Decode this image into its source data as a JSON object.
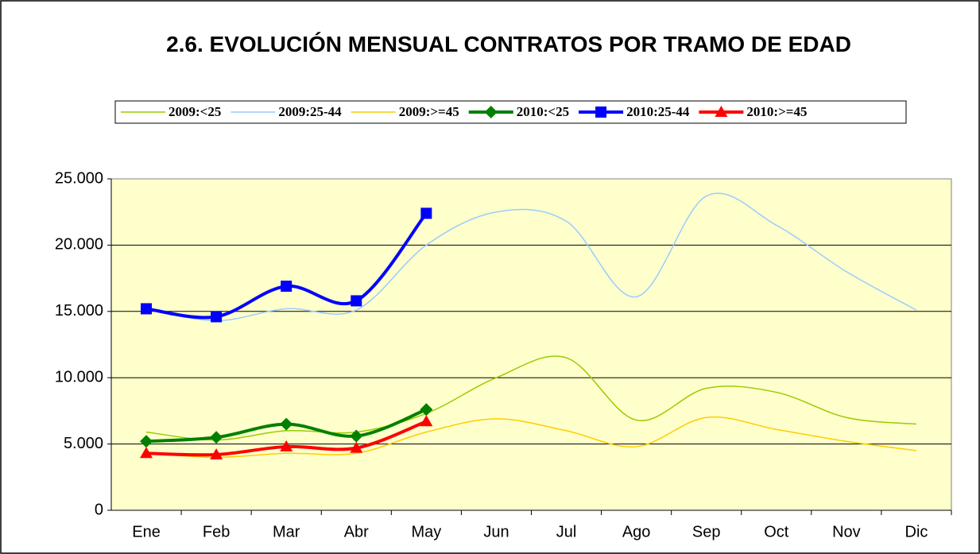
{
  "chart_data": {
    "type": "line",
    "title": "2.6. EVOLUCIÓN MENSUAL CONTRATOS POR TRAMO DE EDAD",
    "categories": [
      "Ene",
      "Feb",
      "Mar",
      "Abr",
      "May",
      "Jun",
      "Jul",
      "Ago",
      "Sep",
      "Oct",
      "Nov",
      "Dic"
    ],
    "series": [
      {
        "name": "2009:<25",
        "color": "#99cc00",
        "values": [
          5900,
          5300,
          6000,
          5900,
          7300,
          10000,
          11500,
          6800,
          9200,
          8900,
          7000,
          6500
        ]
      },
      {
        "name": "2009:25-44",
        "color": "#99ccff",
        "values": [
          15200,
          14300,
          15200,
          15100,
          20000,
          22500,
          21800,
          16100,
          23700,
          21500,
          18000,
          15100
        ]
      },
      {
        "name": "2009:>=45",
        "color": "#ffcc00",
        "values": [
          4300,
          4000,
          4300,
          4300,
          5900,
          6900,
          6000,
          4800,
          7000,
          6100,
          5200,
          4500
        ]
      },
      {
        "name": "2010:<25",
        "color": "#008000",
        "marker": "diamond",
        "values": [
          5200,
          5500,
          6500,
          5600,
          7600,
          null,
          null,
          null,
          null,
          null,
          null,
          null
        ]
      },
      {
        "name": "2010:25-44",
        "color": "#0000ff",
        "marker": "square",
        "values": [
          15200,
          14600,
          16900,
          15800,
          22400,
          null,
          null,
          null,
          null,
          null,
          null,
          null
        ]
      },
      {
        "name": "2010:>=45",
        "color": "#ff0000",
        "marker": "triangle",
        "values": [
          4300,
          4200,
          4800,
          4700,
          6700,
          null,
          null,
          null,
          null,
          null,
          null,
          null
        ]
      }
    ],
    "ylim": [
      0,
      25000
    ],
    "yticks": [
      0,
      {
        "value": 5000,
        "label": "5.000"
      },
      {
        "value": 10000,
        "label": "10.000"
      },
      {
        "value": 15000,
        "label": "15.000"
      },
      {
        "value": 20000,
        "label": "20.000"
      },
      {
        "value": 25000,
        "label": "25.000"
      }
    ],
    "grid": true,
    "legend": "top"
  }
}
